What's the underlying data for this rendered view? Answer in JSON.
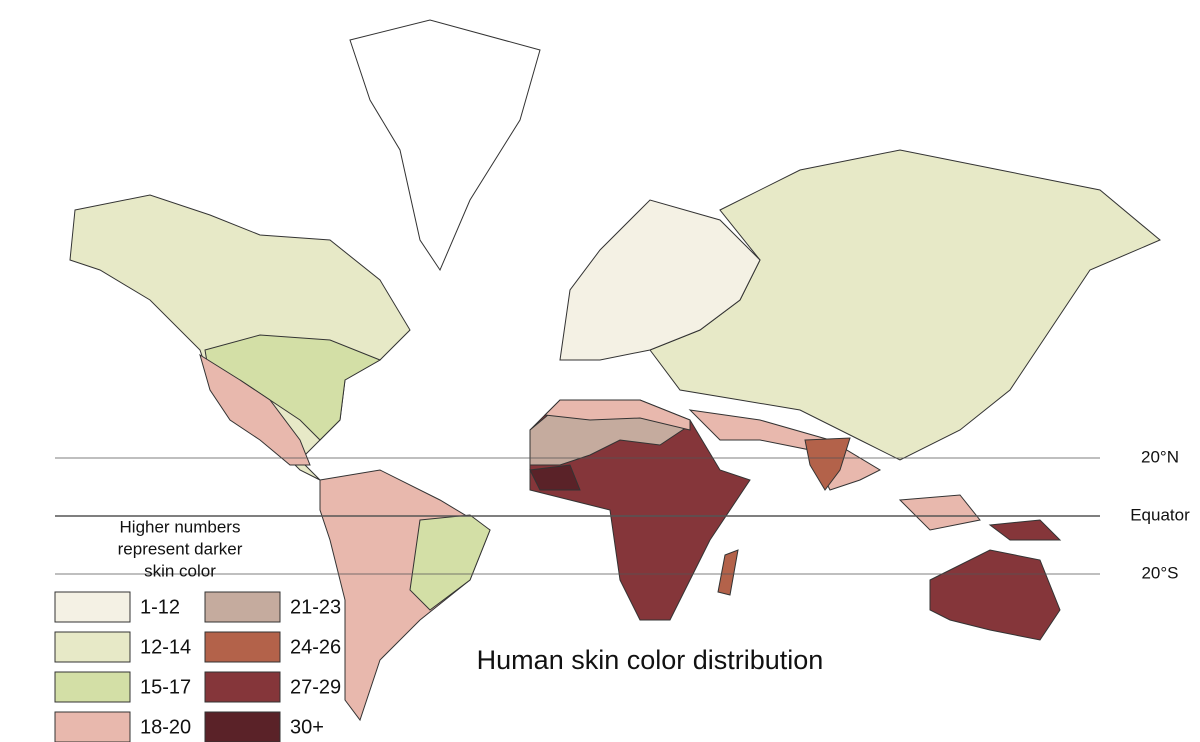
{
  "title": "Human skin color distribution",
  "note": [
    "Higher numbers",
    "represent darker",
    "skin color"
  ],
  "latitudes": [
    {
      "label": "20°N"
    },
    {
      "label": "Equator"
    },
    {
      "label": "20°S"
    }
  ],
  "legend": [
    {
      "label": "1-12",
      "color": "#f4f1e4"
    },
    {
      "label": "12-14",
      "color": "#e7e9c7"
    },
    {
      "label": "15-17",
      "color": "#d3dfa6"
    },
    {
      "label": "18-20",
      "color": "#e8b8ad"
    },
    {
      "label": "21-23",
      "color": "#c5ab9e"
    },
    {
      "label": "24-26",
      "color": "#b3624a"
    },
    {
      "label": "27-29",
      "color": "#85363a"
    },
    {
      "label": "30+",
      "color": "#5a2228"
    }
  ]
}
